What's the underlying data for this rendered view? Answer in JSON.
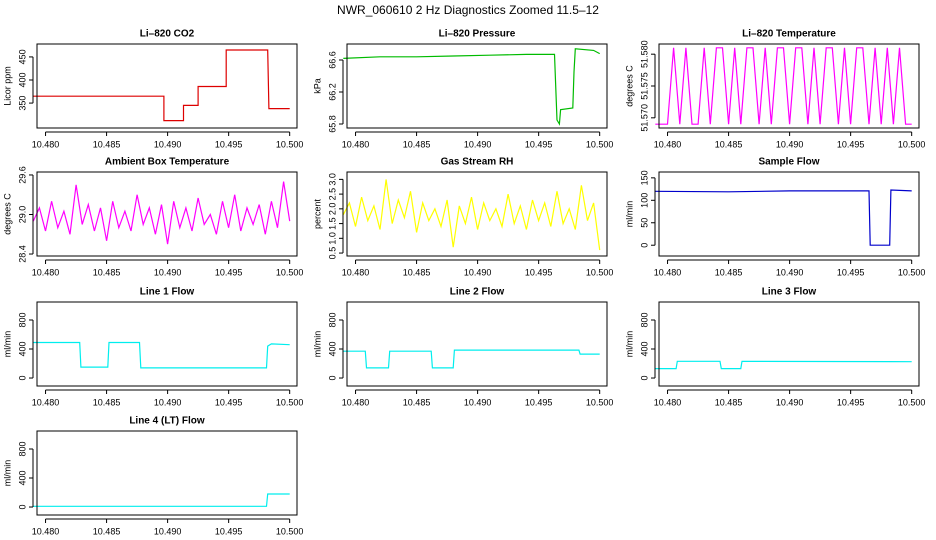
{
  "title": "NWR_060610  2 Hz Diagnostics Zoomed 11.5–12",
  "chart_data": [
    {
      "type": "line",
      "title": "Li–820 CO2",
      "ylabel": "Licor ppm",
      "color": "#dd0000",
      "x": [
        10.479,
        10.4897,
        10.4897,
        10.4913,
        10.4913,
        10.4925,
        10.4925,
        10.4948,
        10.4948,
        10.4982,
        10.4983,
        10.5
      ],
      "values": [
        365,
        365,
        312,
        312,
        345,
        345,
        386,
        386,
        465,
        465,
        338,
        338
      ],
      "xlim": [
        10.4793,
        10.5006
      ],
      "xticks": [
        {
          "value": 10.48,
          "label": "10.480"
        },
        {
          "value": 10.485,
          "label": "10.485"
        },
        {
          "value": 10.49,
          "label": "10.490"
        },
        {
          "value": 10.495,
          "label": "10.495"
        },
        {
          "value": 10.5,
          "label": "10.500"
        }
      ],
      "ylim": [
        296,
        478
      ],
      "yticks": [
        350,
        400,
        450
      ]
    },
    {
      "type": "line",
      "title": "Li–820 Pressure",
      "ylabel": "kPa",
      "color": "#00bb00",
      "x": [
        10.479,
        10.482,
        10.485,
        10.488,
        10.491,
        10.494,
        10.4963,
        10.4965,
        10.4967,
        10.4968,
        10.4978,
        10.4979,
        10.498,
        10.4995,
        10.5
      ],
      "values": [
        66.62,
        66.64,
        66.64,
        66.65,
        66.66,
        66.67,
        66.67,
        65.85,
        65.8,
        65.98,
        66.0,
        66.45,
        66.74,
        66.72,
        66.68
      ],
      "xlim": [
        10.4793,
        10.5006
      ],
      "xticks": [
        {
          "value": 10.48,
          "label": "10.480"
        },
        {
          "value": 10.485,
          "label": "10.485"
        },
        {
          "value": 10.49,
          "label": "10.490"
        },
        {
          "value": 10.495,
          "label": "10.495"
        },
        {
          "value": 10.5,
          "label": "10.500"
        }
      ],
      "ylim": [
        65.75,
        66.8
      ],
      "yticks": [
        65.8,
        66.2,
        66.6
      ]
    },
    {
      "type": "line",
      "title": "Li–820 Temperature",
      "ylabel": "degrees C",
      "color": "#ff00ff",
      "x": [
        10.479,
        10.4795,
        10.48,
        10.4805,
        10.481,
        10.4815,
        10.482,
        10.4825,
        10.483,
        10.4835,
        10.484,
        10.4845,
        10.485,
        10.4855,
        10.486,
        10.4865,
        10.487,
        10.4875,
        10.488,
        10.4885,
        10.489,
        10.4895,
        10.49,
        10.4905,
        10.491,
        10.4915,
        10.492,
        10.4925,
        10.493,
        10.4935,
        10.494,
        10.4945,
        10.495,
        10.4955,
        10.496,
        10.4965,
        10.497,
        10.4975,
        10.498,
        10.4985,
        10.499,
        10.4995,
        10.5
      ],
      "values": [
        51.569,
        51.569,
        51.569,
        51.581,
        51.569,
        51.581,
        51.569,
        51.569,
        51.581,
        51.569,
        51.581,
        51.581,
        51.569,
        51.581,
        51.569,
        51.581,
        51.581,
        51.569,
        51.581,
        51.569,
        51.581,
        51.581,
        51.569,
        51.581,
        51.581,
        51.569,
        51.581,
        51.569,
        51.581,
        51.581,
        51.569,
        51.581,
        51.569,
        51.581,
        51.581,
        51.569,
        51.581,
        51.569,
        51.581,
        51.569,
        51.581,
        51.569,
        51.569
      ],
      "xlim": [
        10.4793,
        10.5006
      ],
      "xticks": [
        {
          "value": 10.48,
          "label": "10.480"
        },
        {
          "value": 10.485,
          "label": "10.485"
        },
        {
          "value": 10.49,
          "label": "10.490"
        },
        {
          "value": 10.495,
          "label": "10.495"
        },
        {
          "value": 10.5,
          "label": "10.500"
        }
      ],
      "ylim": [
        51.5684,
        51.5816
      ],
      "yticks": [
        {
          "value": 51.57,
          "label": "51.570"
        },
        {
          "value": 51.575,
          "label": "51.575"
        },
        {
          "value": 51.58,
          "label": "51.580"
        }
      ]
    },
    {
      "type": "line",
      "title": "Ambient Box Temperature",
      "ylabel": "degrees C",
      "color": "#ff00ff",
      "x": [
        10.479,
        10.4795,
        10.48,
        10.4805,
        10.481,
        10.4815,
        10.482,
        10.4825,
        10.483,
        10.4835,
        10.484,
        10.4845,
        10.485,
        10.4855,
        10.486,
        10.4865,
        10.487,
        10.4875,
        10.488,
        10.4885,
        10.489,
        10.4895,
        10.49,
        10.4905,
        10.491,
        10.4915,
        10.492,
        10.4925,
        10.493,
        10.4935,
        10.494,
        10.4945,
        10.495,
        10.4955,
        10.496,
        10.4965,
        10.497,
        10.4975,
        10.498,
        10.4985,
        10.499,
        10.4995,
        10.5
      ],
      "values": [
        28.9,
        29.1,
        28.75,
        29.2,
        28.8,
        29.05,
        28.7,
        29.45,
        28.85,
        29.15,
        28.75,
        29.1,
        28.6,
        29.2,
        28.8,
        29.05,
        28.75,
        29.3,
        28.85,
        29.1,
        28.7,
        29.15,
        28.55,
        29.2,
        28.8,
        29.1,
        28.75,
        29.25,
        28.85,
        29.0,
        28.7,
        29.2,
        28.8,
        29.3,
        28.75,
        29.1,
        28.85,
        29.15,
        28.7,
        29.2,
        28.8,
        29.5,
        28.9
      ],
      "xlim": [
        10.4793,
        10.5006
      ],
      "xticks": [
        {
          "value": 10.48,
          "label": "10.480"
        },
        {
          "value": 10.485,
          "label": "10.485"
        },
        {
          "value": 10.49,
          "label": "10.490"
        },
        {
          "value": 10.495,
          "label": "10.495"
        },
        {
          "value": 10.5,
          "label": "10.500"
        }
      ],
      "ylim": [
        28.37,
        29.645
      ],
      "yticks": [
        28.4,
        {
          "value": 29,
          "label": "29.0"
        },
        29.6
      ]
    },
    {
      "type": "line",
      "title": "Gas Stream RH",
      "ylabel": "percent",
      "color": "#ffff00",
      "x": [
        10.479,
        10.4795,
        10.48,
        10.4805,
        10.481,
        10.4815,
        10.482,
        10.4825,
        10.483,
        10.4835,
        10.484,
        10.4845,
        10.485,
        10.4855,
        10.486,
        10.4865,
        10.487,
        10.4875,
        10.488,
        10.4885,
        10.489,
        10.4895,
        10.49,
        10.4905,
        10.491,
        10.4915,
        10.492,
        10.4925,
        10.493,
        10.4935,
        10.494,
        10.4945,
        10.495,
        10.4955,
        10.496,
        10.4965,
        10.497,
        10.4975,
        10.498,
        10.4985,
        10.499,
        10.4995,
        10.5
      ],
      "values": [
        1.8,
        2.2,
        1.4,
        2.4,
        1.6,
        2.1,
        1.3,
        3.0,
        1.5,
        2.3,
        1.7,
        2.6,
        1.2,
        2.2,
        1.6,
        2.0,
        1.4,
        2.3,
        0.7,
        2.1,
        1.5,
        2.4,
        1.3,
        2.2,
        1.6,
        2.0,
        1.4,
        2.5,
        1.5,
        2.1,
        1.3,
        2.3,
        1.6,
        2.2,
        1.4,
        2.6,
        1.5,
        2.0,
        1.3,
        2.8,
        1.6,
        2.2,
        0.6
      ],
      "xlim": [
        10.4793,
        10.5006
      ],
      "xticks": [
        {
          "value": 10.48,
          "label": "10.480"
        },
        {
          "value": 10.485,
          "label": "10.485"
        },
        {
          "value": 10.49,
          "label": "10.490"
        },
        {
          "value": 10.495,
          "label": "10.495"
        },
        {
          "value": 10.5,
          "label": "10.500"
        }
      ],
      "ylim": [
        0.4,
        3.25
      ],
      "yticks": [
        0.5,
        {
          "value": 1,
          "label": "1.0"
        },
        1.5,
        {
          "value": 2,
          "label": "2.0"
        },
        2.5,
        {
          "value": 3,
          "label": "3.0"
        }
      ]
    },
    {
      "type": "line",
      "title": "Sample Flow",
      "ylabel": "ml/min",
      "color": "#0000cc",
      "x": [
        10.479,
        10.485,
        10.49,
        10.4965,
        10.4966,
        10.4982,
        10.4983,
        10.5
      ],
      "values": [
        120,
        119,
        121,
        121,
        0,
        0,
        123,
        121
      ],
      "xlim": [
        10.4793,
        10.5006
      ],
      "xticks": [
        {
          "value": 10.48,
          "label": "10.480"
        },
        {
          "value": 10.485,
          "label": "10.485"
        },
        {
          "value": 10.49,
          "label": "10.490"
        },
        {
          "value": 10.495,
          "label": "10.495"
        },
        {
          "value": 10.5,
          "label": "10.500"
        }
      ],
      "ylim": [
        -24,
        163
      ],
      "yticks": [
        0,
        50,
        100,
        150
      ]
    },
    {
      "type": "line",
      "title": "Line 1 Flow",
      "ylabel": "ml/min",
      "color": "#00eeee",
      "x": [
        10.479,
        10.4828,
        10.4829,
        10.4851,
        10.4852,
        10.4877,
        10.4878,
        10.4981,
        10.4982,
        10.4985,
        10.5
      ],
      "values": [
        490,
        490,
        150,
        150,
        490,
        490,
        140,
        140,
        440,
        470,
        460
      ],
      "xlim": [
        10.4793,
        10.5006
      ],
      "xticks": [
        {
          "value": 10.48,
          "label": "10.480"
        },
        {
          "value": 10.485,
          "label": "10.485"
        },
        {
          "value": 10.49,
          "label": "10.490"
        },
        {
          "value": 10.495,
          "label": "10.495"
        },
        {
          "value": 10.5,
          "label": "10.500"
        }
      ],
      "ylim": [
        -110,
        1048
      ],
      "yticks": [
        0,
        400,
        800
      ]
    },
    {
      "type": "line",
      "title": "Line 2 Flow",
      "ylabel": "ml/min",
      "color": "#00eeee",
      "x": [
        10.479,
        10.4808,
        10.4809,
        10.4827,
        10.4828,
        10.4862,
        10.4863,
        10.488,
        10.4881,
        10.4983,
        10.4984,
        10.5
      ],
      "values": [
        370,
        370,
        140,
        140,
        370,
        370,
        140,
        140,
        385,
        385,
        330,
        330
      ],
      "xlim": [
        10.4793,
        10.5006
      ],
      "xticks": [
        {
          "value": 10.48,
          "label": "10.480"
        },
        {
          "value": 10.485,
          "label": "10.485"
        },
        {
          "value": 10.49,
          "label": "10.490"
        },
        {
          "value": 10.495,
          "label": "10.495"
        },
        {
          "value": 10.5,
          "label": "10.500"
        }
      ],
      "ylim": [
        -110,
        1048
      ],
      "yticks": [
        0,
        400,
        800
      ]
    },
    {
      "type": "line",
      "title": "Line 3 Flow",
      "ylabel": "ml/min",
      "color": "#00eeee",
      "x": [
        10.479,
        10.4807,
        10.4808,
        10.4843,
        10.4844,
        10.486,
        10.4861,
        10.5
      ],
      "values": [
        130,
        130,
        230,
        230,
        130,
        130,
        230,
        225
      ],
      "xlim": [
        10.4793,
        10.5006
      ],
      "xticks": [
        {
          "value": 10.48,
          "label": "10.480"
        },
        {
          "value": 10.485,
          "label": "10.485"
        },
        {
          "value": 10.49,
          "label": "10.490"
        },
        {
          "value": 10.495,
          "label": "10.495"
        },
        {
          "value": 10.5,
          "label": "10.500"
        }
      ],
      "ylim": [
        -110,
        1048
      ],
      "yticks": [
        0,
        400,
        800
      ]
    },
    {
      "type": "line",
      "title": "Line 4 (LT) Flow",
      "ylabel": "ml/min",
      "color": "#00eeee",
      "x": [
        10.479,
        10.4981,
        10.4982,
        10.5
      ],
      "values": [
        10,
        10,
        180,
        180
      ],
      "xlim": [
        10.4793,
        10.5006
      ],
      "xticks": [
        {
          "value": 10.48,
          "label": "10.480"
        },
        {
          "value": 10.485,
          "label": "10.485"
        },
        {
          "value": 10.49,
          "label": "10.490"
        },
        {
          "value": 10.495,
          "label": "10.495"
        },
        {
          "value": 10.5,
          "label": "10.500"
        }
      ],
      "ylim": [
        -110,
        1048
      ],
      "yticks": [
        0,
        400,
        800
      ]
    }
  ]
}
